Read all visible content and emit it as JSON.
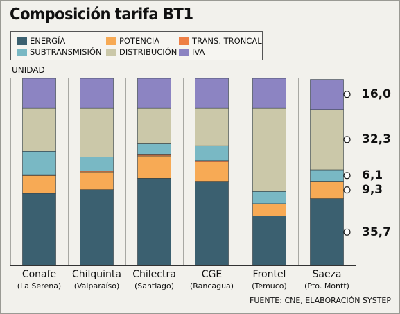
{
  "title": "Composición tarifa BT1",
  "unit_label": "UNIDAD",
  "source": "FUENTE: CNE, ELABORACIÓN SYSTEP",
  "legend": [
    {
      "label": "ENERGÍA",
      "color": "#3b6070"
    },
    {
      "label": "POTENCIA",
      "color": "#f7aa55"
    },
    {
      "label": "TRANS. TRONCAL",
      "color": "#ee7f45"
    },
    {
      "label": "SUBTRANSMISIÓN",
      "color": "#79b8c4"
    },
    {
      "label": "DISTRIBUCIÓN",
      "color": "#cbc8a9"
    },
    {
      "label": "IVA",
      "color": "#8c84c2"
    }
  ],
  "chart_data": {
    "type": "bar",
    "stacked": true,
    "title": "Composición tarifa BT1",
    "ylabel": "UNIDAD",
    "ylim": [
      0,
      100
    ],
    "grid": true,
    "categories": [
      "Conafe",
      "Chilquinta",
      "Chilectra",
      "CGE",
      "Frontel",
      "Saeza"
    ],
    "category_sublabels": [
      "(La Serena)",
      "(Valparaíso)",
      "(Santiago)",
      "(Rancagua)",
      "(Temuco)",
      "(Pto. Montt)"
    ],
    "series": [
      {
        "name": "ENERGÍA",
        "color": "#3b6070",
        "values": [
          38.5,
          40.5,
          46.5,
          45.0,
          26.5,
          35.7
        ]
      },
      {
        "name": "POTENCIA",
        "color": "#f7aa55",
        "values": [
          9.5,
          9.5,
          12.0,
          10.5,
          6.5,
          9.3
        ]
      },
      {
        "name": "TRANS. TRONCAL",
        "color": "#ee7f45",
        "values": [
          0.5,
          0.5,
          1.0,
          0.5,
          0.0,
          0.0
        ]
      },
      {
        "name": "SUBTRANSMISIÓN",
        "color": "#79b8c4",
        "values": [
          12.5,
          7.5,
          5.5,
          8.0,
          6.5,
          6.1
        ]
      },
      {
        "name": "DISTRIBUCIÓN",
        "color": "#cbc8a9",
        "values": [
          23.0,
          26.0,
          19.0,
          20.0,
          44.5,
          32.3
        ]
      },
      {
        "name": "IVA",
        "color": "#8c84c2",
        "values": [
          16.0,
          16.0,
          16.0,
          16.0,
          16.0,
          16.0
        ]
      }
    ],
    "value_labels": [
      {
        "text": "16,0",
        "series": "IVA"
      },
      {
        "text": "32,3",
        "series": "DISTRIBUCIÓN"
      },
      {
        "text": "6,1",
        "series": "SUBTRANSMISIÓN"
      },
      {
        "text": "9,3",
        "series": "POTENCIA"
      },
      {
        "text": "35,7",
        "series": "ENERGÍA"
      }
    ]
  }
}
